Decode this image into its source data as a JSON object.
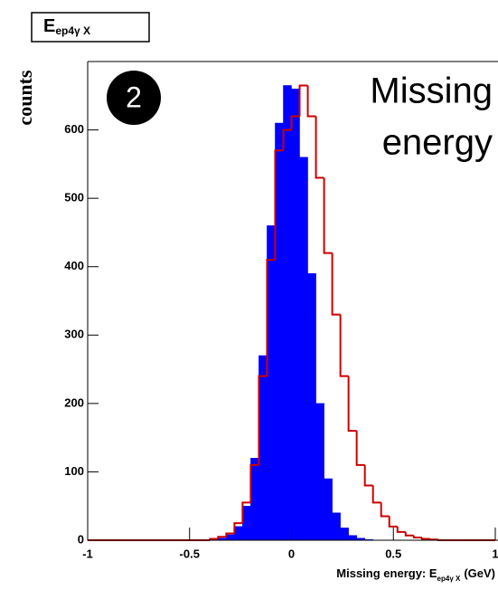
{
  "chart_data": {
    "type": "histogram",
    "title": "E",
    "title_subscript": "ep4γ X",
    "xlabel": "Missing energy: E",
    "xlabel_subscript": "ep4γ X",
    "xlabel_unit": "(GeV)",
    "ylabel": "counts",
    "annotation_number": "2",
    "annotation_lines": [
      "Missing",
      "energy"
    ],
    "bins": [
      -1,
      -0.96,
      -0.92,
      -0.88,
      -0.84,
      -0.8,
      -0.76,
      -0.72,
      -0.68,
      -0.64,
      -0.6,
      -0.56,
      -0.52,
      -0.48,
      -0.44,
      -0.4,
      -0.36,
      -0.32,
      -0.28,
      -0.24,
      -0.2,
      -0.16,
      -0.12,
      -0.08,
      -0.04,
      0,
      0.04,
      0.08,
      0.12,
      0.16,
      0.2,
      0.24,
      0.28,
      0.32,
      0.36,
      0.4,
      0.44,
      0.48,
      0.52,
      0.56,
      0.6,
      0.64,
      0.68,
      0.72,
      0.76,
      0.8,
      0.84,
      0.88,
      0.92,
      0.96,
      1
    ],
    "series": [
      {
        "color": "#0000ff",
        "style": "filled",
        "values": [
          0,
          0,
          0,
          0,
          0,
          0,
          0,
          0,
          0,
          0,
          0,
          0,
          0,
          0,
          0,
          1,
          3,
          8,
          20,
          50,
          120,
          270,
          460,
          610,
          665,
          660,
          560,
          390,
          200,
          90,
          40,
          18,
          7,
          3,
          1,
          0,
          0,
          0,
          0,
          0,
          0,
          0,
          0,
          0,
          0,
          0,
          0,
          0,
          0,
          0
        ]
      },
      {
        "color": "#cc0000",
        "style": "outline",
        "values": [
          0,
          0,
          0,
          0,
          0,
          0,
          0,
          0,
          0,
          0,
          0,
          0,
          0,
          0,
          0,
          2,
          5,
          10,
          25,
          55,
          110,
          240,
          410,
          570,
          600,
          620,
          665,
          620,
          530,
          420,
          330,
          240,
          160,
          110,
          80,
          55,
          35,
          20,
          12,
          7,
          4,
          2,
          1,
          0,
          0,
          0,
          0,
          0,
          0,
          0
        ]
      }
    ],
    "xlim": [
      -1,
      1
    ],
    "xticks": [
      -1,
      -0.5,
      0,
      0.5,
      1
    ],
    "ylim": [
      0,
      700
    ],
    "yticks": [
      0,
      100,
      200,
      300,
      400,
      500,
      600
    ]
  }
}
